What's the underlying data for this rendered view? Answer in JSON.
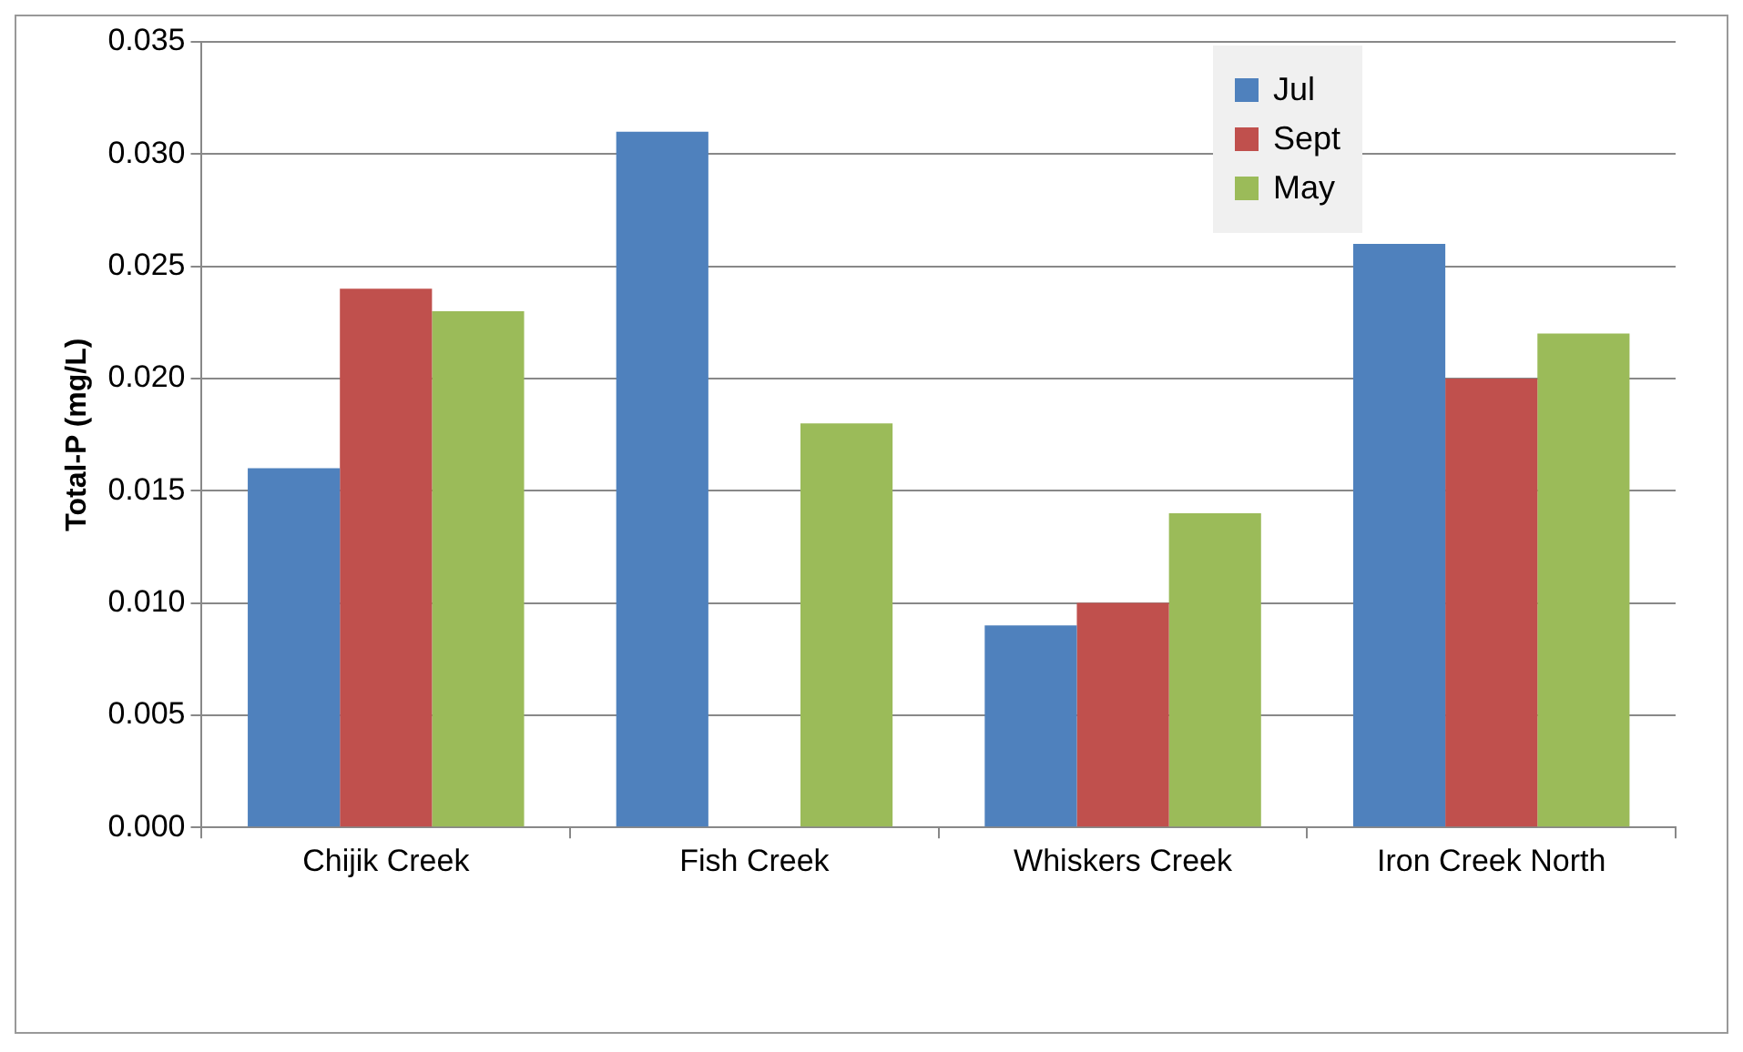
{
  "chart_data": {
    "type": "bar",
    "ylabel": "Total-P (mg/L)",
    "categories": [
      "Chijik Creek",
      "Fish Creek",
      "Whiskers Creek",
      "Iron Creek North"
    ],
    "series": [
      {
        "name": "Jul",
        "color": "#4f81bd",
        "values": [
          0.016,
          0.031,
          0.009,
          0.026
        ]
      },
      {
        "name": "Sept",
        "color": "#c0504d",
        "values": [
          0.024,
          null,
          0.01,
          0.02
        ]
      },
      {
        "name": "May",
        "color": "#9bbb59",
        "values": [
          0.023,
          0.018,
          0.014,
          0.022
        ]
      }
    ],
    "ylim": [
      0,
      0.035
    ],
    "yticks": [
      {
        "value": 0,
        "label": "0.000"
      },
      {
        "value": 0.005,
        "label": "0.005"
      },
      {
        "value": 0.01,
        "label": "0.010"
      },
      {
        "value": 0.015,
        "label": "0.015"
      },
      {
        "value": 0.02,
        "label": "0.020"
      },
      {
        "value": 0.025,
        "label": "0.025"
      },
      {
        "value": 0.03,
        "label": "0.030"
      },
      {
        "value": 0.035,
        "label": "0.035"
      }
    ],
    "grid": "y",
    "legend": "top right"
  }
}
